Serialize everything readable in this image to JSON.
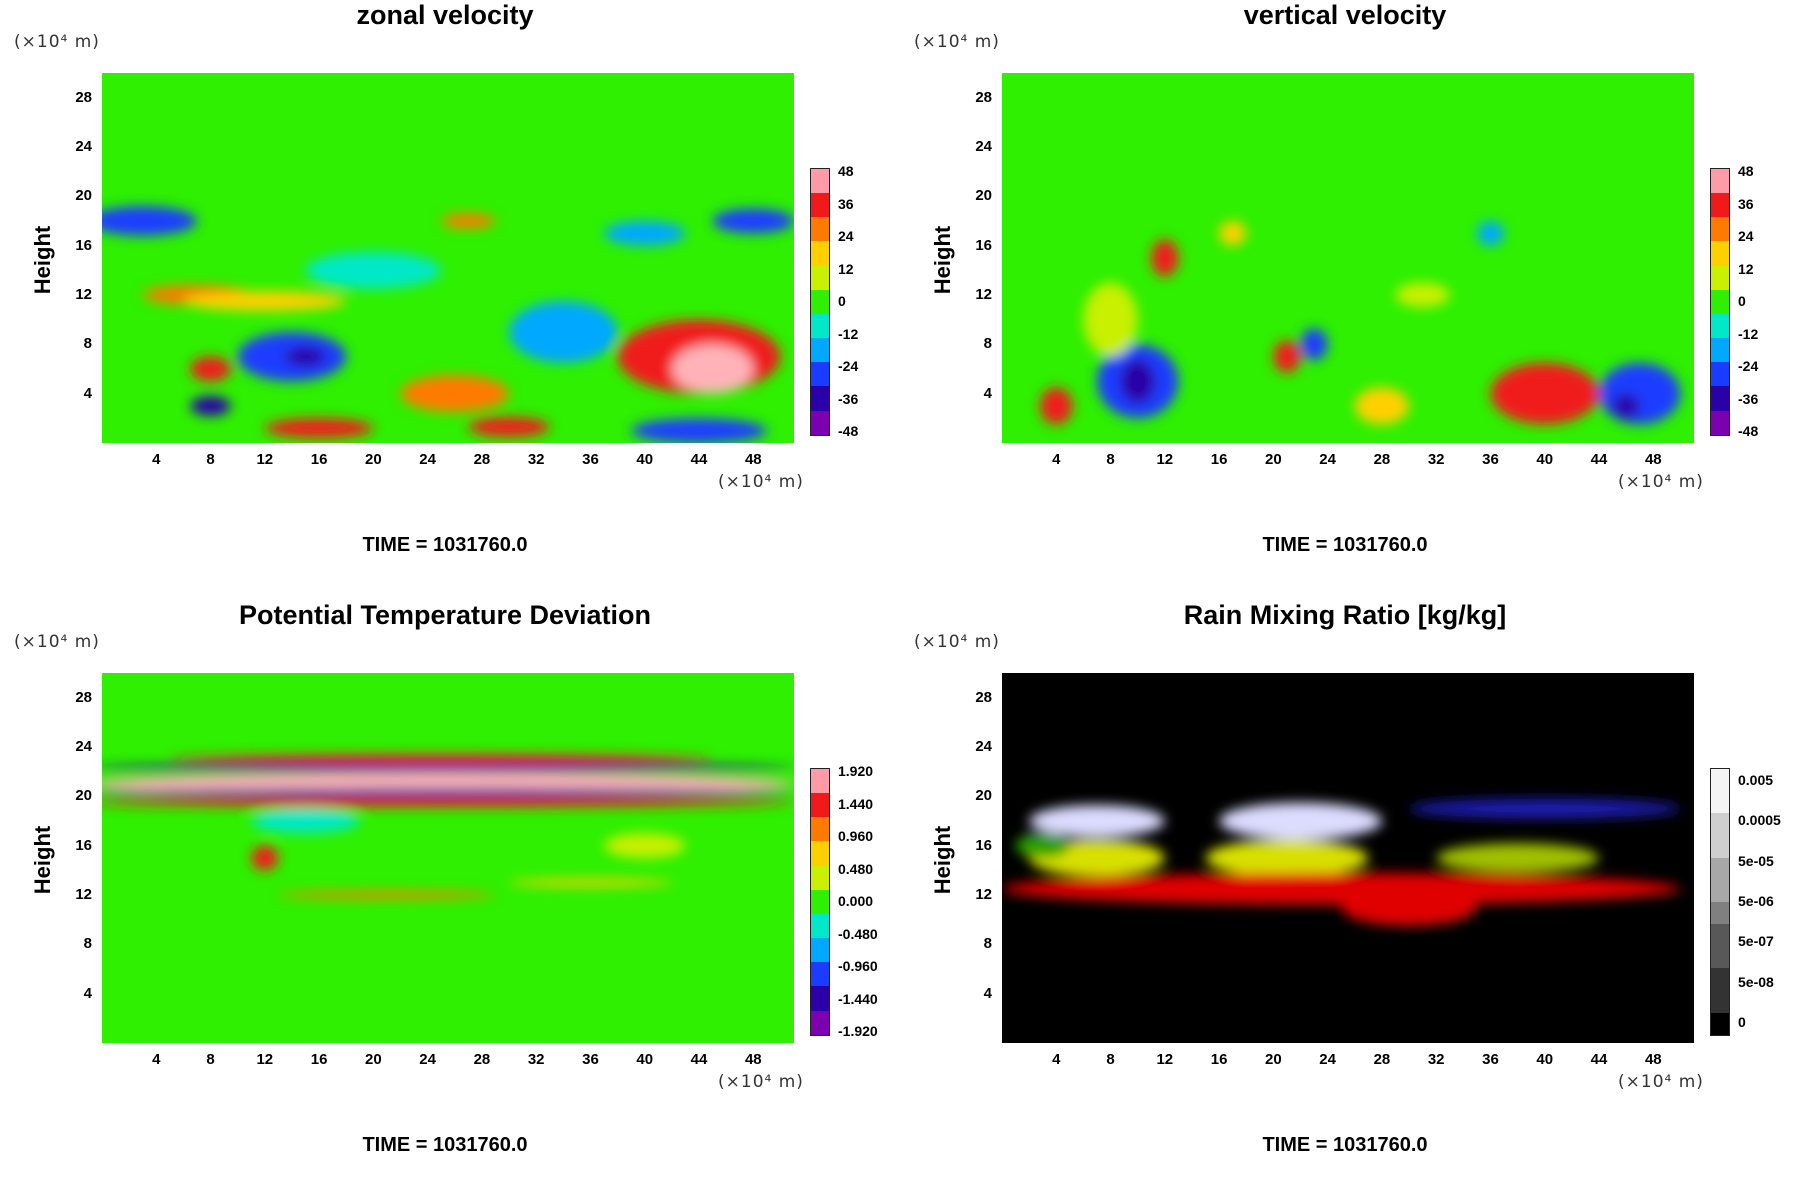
{
  "panels": [
    {
      "title": "zonal velocity",
      "time_label": "TIME = 1031760.0",
      "ylabel": "Height",
      "y_unit": "(×10⁴ m)",
      "x_unit": "(×10⁴ m)",
      "colorbar_labels": [
        "48",
        "36",
        "24",
        "12",
        "0",
        "-12",
        "-24",
        "-36",
        "-48"
      ]
    },
    {
      "title": "vertical velocity",
      "time_label": "TIME = 1031760.0",
      "ylabel": "Height",
      "y_unit": "(×10⁴ m)",
      "x_unit": "(×10⁴ m)",
      "colorbar_labels": [
        "48",
        "36",
        "24",
        "12",
        "0",
        "-12",
        "-24",
        "-36",
        "-48"
      ]
    },
    {
      "title": "Potential Temperature Deviation",
      "time_label": "TIME = 1031760.0",
      "ylabel": "Height",
      "y_unit": "(×10⁴ m)",
      "x_unit": "(×10⁴ m)",
      "colorbar_labels": [
        "1.920",
        "1.440",
        "0.960",
        "0.480",
        "0.000",
        "-0.480",
        "-0.960",
        "-1.440",
        "-1.920"
      ]
    },
    {
      "title": "Rain Mixing Ratio [kg/kg]",
      "time_label": "TIME = 1031760.0",
      "ylabel": "Height",
      "y_unit": "(×10⁴ m)",
      "x_unit": "(×10⁴ m)",
      "colorbar_labels": [
        "0.005",
        "0.0005",
        "5e-05",
        "5e-06",
        "5e-07",
        "5e-08",
        "0"
      ]
    }
  ],
  "chart_data": [
    {
      "type": "heatmap",
      "title": "zonal velocity",
      "xlabel": "",
      "ylabel": "Height",
      "x_ticks": [
        4,
        8,
        12,
        16,
        20,
        24,
        28,
        32,
        36,
        40,
        44,
        48
      ],
      "y_ticks": [
        4,
        8,
        12,
        16,
        20,
        24,
        28
      ],
      "xlim": [
        0,
        51
      ],
      "ylim": [
        0,
        30
      ],
      "color_range": [
        -48,
        48
      ],
      "colors": {
        "background": "#2ef000"
      }
    },
    {
      "type": "heatmap",
      "title": "vertical velocity",
      "xlabel": "",
      "ylabel": "Height",
      "x_ticks": [
        4,
        8,
        12,
        16,
        20,
        24,
        28,
        32,
        36,
        40,
        44,
        48
      ],
      "y_ticks": [
        4,
        8,
        12,
        16,
        20,
        24,
        28
      ],
      "xlim": [
        0,
        51
      ],
      "ylim": [
        0,
        30
      ],
      "color_range": [
        -48,
        48
      ],
      "colors": {
        "background": "#2ef000"
      }
    },
    {
      "type": "heatmap",
      "title": "Potential Temperature Deviation",
      "xlabel": "",
      "ylabel": "Height",
      "x_ticks": [
        4,
        8,
        12,
        16,
        20,
        24,
        28,
        32,
        36,
        40,
        44,
        48
      ],
      "y_ticks": [
        4,
        8,
        12,
        16,
        20,
        24,
        28
      ],
      "xlim": [
        0,
        51
      ],
      "ylim": [
        0,
        30
      ],
      "color_range": [
        -1.92,
        1.92
      ],
      "colors": {
        "background": "#2ef000"
      }
    },
    {
      "type": "heatmap",
      "title": "Rain Mixing Ratio [kg/kg]",
      "xlabel": "",
      "ylabel": "Height",
      "x_ticks": [
        4,
        8,
        12,
        16,
        20,
        24,
        28,
        32,
        36,
        40,
        44,
        48
      ],
      "y_ticks": [
        4,
        8,
        12,
        16,
        20,
        24,
        28
      ],
      "xlim": [
        0,
        51
      ],
      "ylim": [
        0,
        30
      ],
      "color_range": [
        0,
        0.005
      ],
      "colors": {
        "background": "#000000"
      }
    }
  ]
}
